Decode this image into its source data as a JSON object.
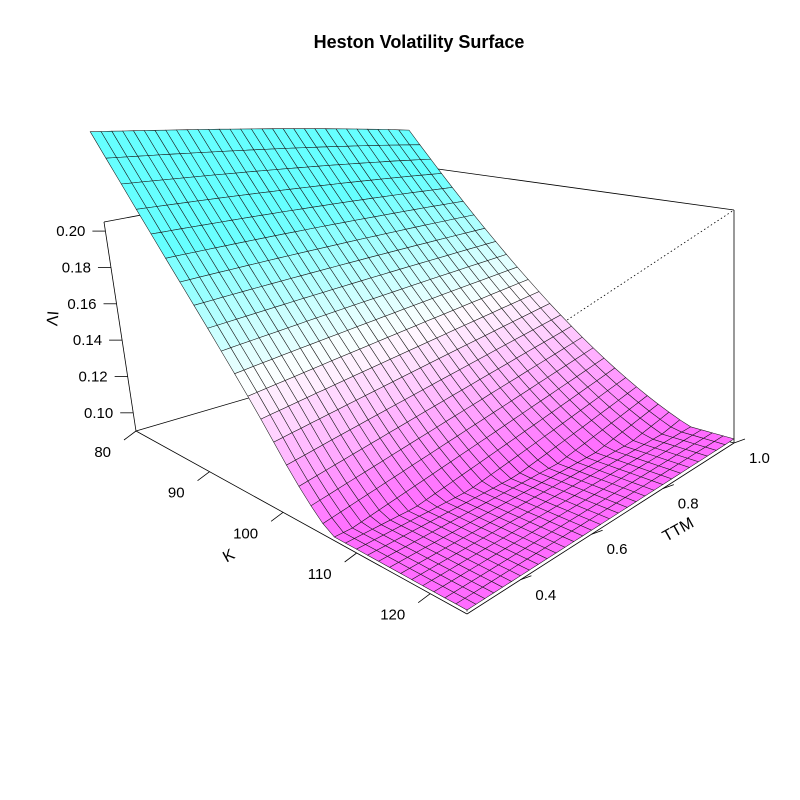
{
  "chart_data": {
    "type": "surface3d",
    "title": "Heston Volatility Surface",
    "xlabel": "K",
    "ylabel": "TTM",
    "zlabel": "IV",
    "xlim": [
      80,
      125
    ],
    "ylim": [
      0.25,
      1.0
    ],
    "zlim": [
      0.09,
      0.205
    ],
    "x_ticks": [
      80,
      90,
      100,
      110,
      120
    ],
    "x_tick_labels": [
      "80",
      "90",
      "100",
      "110",
      "120"
    ],
    "y_ticks": [
      0.4,
      0.6,
      0.8,
      1.0
    ],
    "y_tick_labels": [
      "0.4",
      "0.6",
      "0.8",
      "1.0"
    ],
    "z_ticks": [
      0.1,
      0.12,
      0.14,
      0.16,
      0.18,
      0.2
    ],
    "z_tick_labels": [
      "0.10",
      "0.12",
      "0.14",
      "0.16",
      "0.18",
      "0.20"
    ],
    "grid_K": 31,
    "grid_TTM": 31,
    "surface_samples": [
      {
        "K": 80,
        "TTM": 0.25,
        "IV": 0.205
      },
      {
        "K": 80,
        "TTM": 1.0,
        "IV": 0.2
      },
      {
        "K": 100,
        "TTM": 0.25,
        "IV": 0.135
      },
      {
        "K": 100,
        "TTM": 1.0,
        "IV": 0.155
      },
      {
        "K": 110,
        "TTM": 0.25,
        "IV": 0.095
      },
      {
        "K": 110,
        "TTM": 1.0,
        "IV": 0.125
      },
      {
        "K": 125,
        "TTM": 0.25,
        "IV": 0.104
      },
      {
        "K": 125,
        "TTM": 1.0,
        "IV": 0.118
      }
    ],
    "color_low": "#ff66ff",
    "color_mid": "#ffffff",
    "color_high": "#66ffff",
    "grid": false,
    "legend": "none"
  }
}
